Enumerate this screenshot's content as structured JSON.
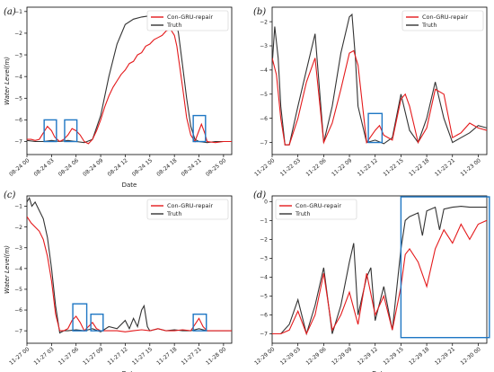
{
  "colors": {
    "prediction": "#e41a1c",
    "truth": "#333333",
    "highlight": "#1f77c4"
  },
  "chart_data": [
    {
      "type": "line",
      "panel_label": "(a)",
      "xlabel": "Date",
      "ylabel": "Water Level(m)",
      "xlim": [
        0,
        25
      ],
      "ylim": [
        -7.6,
        -0.8
      ],
      "xtick_values": [
        0,
        3,
        6,
        9,
        12,
        15,
        18,
        21,
        24
      ],
      "xtick_labels": [
        "08-24 00",
        "08-24 03",
        "08-24 06",
        "08-24 09",
        "08-24 12",
        "08-24 15",
        "08-24 18",
        "08-24 21",
        "08-25 00"
      ],
      "yticks": [
        -7,
        -6,
        -5,
        -4,
        -3,
        -2,
        -1
      ],
      "legend_position": "top-right",
      "series": [
        {
          "name": "Con-GRU-repair",
          "x": [
            0,
            0.5,
            1,
            1.5,
            2,
            2.5,
            3,
            3.4,
            4,
            4.5,
            5,
            5.5,
            6,
            6.5,
            7,
            7.5,
            8,
            8.5,
            9,
            9.5,
            10,
            10.5,
            11,
            11.5,
            12,
            12.5,
            13,
            13.5,
            14,
            14.5,
            15,
            15.5,
            16,
            16.5,
            17,
            17.5,
            18,
            18.3,
            18.6,
            19,
            19.5,
            20,
            20.5,
            21,
            21.3,
            21.7,
            22,
            23,
            24,
            25
          ],
          "y": [
            -6.9,
            -6.9,
            -6.95,
            -6.9,
            -6.6,
            -6.3,
            -6.5,
            -6.8,
            -7.0,
            -6.9,
            -6.7,
            -6.4,
            -6.5,
            -6.7,
            -7.0,
            -7.1,
            -6.9,
            -6.5,
            -6.0,
            -5.4,
            -4.9,
            -4.5,
            -4.2,
            -3.9,
            -3.7,
            -3.4,
            -3.3,
            -3.0,
            -2.9,
            -2.6,
            -2.5,
            -2.3,
            -2.2,
            -2.1,
            -1.9,
            -1.8,
            -2.1,
            -2.6,
            -3.4,
            -4.5,
            -5.9,
            -6.7,
            -7.0,
            -6.5,
            -6.2,
            -6.6,
            -7.0,
            -7.05,
            -7.0,
            -7.0
          ]
        },
        {
          "name": "Truth",
          "x": [
            0,
            1,
            2,
            3,
            4,
            5,
            6,
            7,
            8,
            9,
            10,
            11,
            12,
            13,
            14,
            15,
            16,
            17,
            18,
            18.5,
            19,
            19.5,
            20,
            20.5,
            21,
            22,
            23,
            24,
            25
          ],
          "y": [
            -6.95,
            -7.0,
            -7.0,
            -6.95,
            -7.0,
            -6.95,
            -7.0,
            -7.05,
            -6.9,
            -5.8,
            -4.0,
            -2.5,
            -1.6,
            -1.35,
            -1.25,
            -1.2,
            -1.15,
            -1.1,
            -1.05,
            -2.0,
            -3.5,
            -5.0,
            -6.3,
            -6.9,
            -7.0,
            -7.05,
            -7.0,
            -7.0,
            -7.0
          ]
        }
      ],
      "highlight_boxes": [
        {
          "x": [
            2.1,
            3.6
          ],
          "y": [
            -7.0,
            -6.0
          ]
        },
        {
          "x": [
            4.6,
            6.1
          ],
          "y": [
            -7.0,
            -6.0
          ]
        },
        {
          "x": [
            20.3,
            21.8
          ],
          "y": [
            -7.0,
            -5.8
          ]
        }
      ]
    },
    {
      "type": "line",
      "panel_label": "(b)",
      "xlabel": "",
      "ylabel": "",
      "xlim": [
        0,
        25
      ],
      "ylim": [
        -7.5,
        -1.4
      ],
      "xtick_values": [
        0,
        3,
        6,
        9,
        12,
        15,
        18,
        21,
        24
      ],
      "xtick_labels": [
        "11-22 00",
        "11-22 03",
        "11-22 06",
        "11-22 09",
        "11-22 12",
        "11-22 15",
        "11-22 18",
        "11-22 21",
        "11-23 00"
      ],
      "yticks": [
        -7,
        -6,
        -5,
        -4,
        -3,
        -2
      ],
      "legend_position": "top-right",
      "series": [
        {
          "name": "Con-GRU-repair",
          "x": [
            0,
            0.5,
            1,
            1.5,
            2,
            3,
            4,
            5,
            6,
            7,
            8,
            9,
            9.5,
            10,
            11,
            12,
            12.5,
            13,
            14,
            15,
            15.5,
            16,
            17,
            18,
            19,
            20,
            21,
            22,
            23,
            24,
            25
          ],
          "y": [
            -3.5,
            -4.2,
            -6.0,
            -7.1,
            -7.1,
            -6.0,
            -4.5,
            -3.5,
            -7.0,
            -6.2,
            -4.8,
            -3.3,
            -3.2,
            -3.8,
            -7.0,
            -6.5,
            -6.3,
            -6.7,
            -6.9,
            -5.2,
            -5.0,
            -5.5,
            -7.0,
            -6.4,
            -4.8,
            -5.0,
            -6.8,
            -6.6,
            -6.2,
            -6.4,
            -6.5
          ]
        },
        {
          "name": "Truth",
          "x": [
            0,
            0.3,
            0.7,
            1,
            1.5,
            2,
            3,
            4,
            5,
            6,
            7,
            8,
            9,
            9.3,
            9.7,
            10,
            11,
            12,
            13,
            14,
            15,
            16,
            17,
            18,
            19,
            20,
            21,
            22,
            23,
            24,
            25
          ],
          "y": [
            -3.8,
            -2.2,
            -3.5,
            -5.5,
            -7.1,
            -7.1,
            -5.5,
            -4.0,
            -2.5,
            -7.0,
            -5.5,
            -3.3,
            -1.8,
            -1.7,
            -3.5,
            -5.5,
            -7.0,
            -6.9,
            -7.05,
            -6.8,
            -5.0,
            -6.5,
            -7.0,
            -6.0,
            -4.5,
            -6.0,
            -7.0,
            -6.8,
            -6.6,
            -6.3,
            -6.4
          ]
        }
      ],
      "highlight_boxes": [
        {
          "x": [
            11.2,
            12.8
          ],
          "y": [
            -7.0,
            -5.8
          ]
        }
      ]
    },
    {
      "type": "line",
      "panel_label": "(c)",
      "xlabel": "Date",
      "ylabel": "Water Level(m)",
      "xlim": [
        0,
        25
      ],
      "ylim": [
        -7.6,
        -0.5
      ],
      "xtick_values": [
        0,
        3,
        6,
        9,
        12,
        15,
        18,
        21,
        24
      ],
      "xtick_labels": [
        "11-27 00",
        "11-27 03",
        "11-27 06",
        "11-27 09",
        "11-27 12",
        "11-27 15",
        "11-27 18",
        "11-27 21",
        "11-28 00"
      ],
      "yticks": [
        -7,
        -6,
        -5,
        -4,
        -3,
        -2,
        -1
      ],
      "legend_position": "top-right",
      "series": [
        {
          "name": "Con-GRU-repair",
          "x": [
            0,
            0.5,
            1,
            1.5,
            2,
            2.5,
            3,
            3.5,
            4,
            4.5,
            5,
            5.5,
            6,
            6.5,
            7,
            7.5,
            8,
            8.5,
            9,
            10,
            11,
            12,
            13,
            14,
            15,
            16,
            17,
            18,
            19,
            20,
            20.5,
            21,
            21.5,
            22,
            23,
            24,
            25
          ],
          "y": [
            -1.5,
            -1.8,
            -2.0,
            -2.2,
            -2.6,
            -3.4,
            -4.6,
            -6.2,
            -7.0,
            -7.0,
            -6.9,
            -6.5,
            -6.3,
            -6.6,
            -7.0,
            -6.8,
            -6.6,
            -6.9,
            -7.0,
            -7.0,
            -7.0,
            -7.05,
            -7.0,
            -6.95,
            -7.0,
            -6.9,
            -7.0,
            -7.0,
            -6.95,
            -7.0,
            -6.7,
            -6.4,
            -6.8,
            -7.0,
            -7.0,
            -7.0,
            -7.0
          ]
        },
        {
          "name": "Truth",
          "x": [
            0,
            0.3,
            0.6,
            1,
            1.5,
            2,
            2.5,
            3,
            3.5,
            4,
            4.5,
            5,
            6,
            7,
            8,
            9,
            10,
            11,
            12,
            12.5,
            13,
            13.5,
            14,
            14.3,
            14.7,
            15,
            16,
            17,
            18,
            19,
            20,
            21,
            22,
            23,
            24,
            25
          ],
          "y": [
            -0.8,
            -0.6,
            -1.0,
            -0.8,
            -1.2,
            -1.6,
            -2.5,
            -4.0,
            -5.8,
            -7.1,
            -7.0,
            -7.0,
            -6.95,
            -7.0,
            -6.9,
            -7.05,
            -6.8,
            -6.9,
            -6.5,
            -6.9,
            -6.4,
            -6.8,
            -6.0,
            -5.8,
            -6.8,
            -7.0,
            -6.9,
            -7.0,
            -6.95,
            -7.0,
            -7.0,
            -6.9,
            -7.0,
            -7.0,
            -7.0,
            -7.0
          ]
        }
      ],
      "highlight_boxes": [
        {
          "x": [
            5.6,
            7.3
          ],
          "y": [
            -7.0,
            -5.7
          ]
        },
        {
          "x": [
            7.8,
            9.3
          ],
          "y": [
            -7.0,
            -6.2
          ]
        },
        {
          "x": [
            20.3,
            21.9
          ],
          "y": [
            -7.0,
            -6.2
          ]
        }
      ]
    },
    {
      "type": "line",
      "panel_label": "(d)",
      "xlabel": "Date",
      "ylabel": "",
      "xlim": [
        0,
        25
      ],
      "ylim": [
        -7.5,
        0.3
      ],
      "xtick_values": [
        0,
        3,
        6,
        9,
        12,
        15,
        18,
        21,
        24
      ],
      "xtick_labels": [
        "12-29 00",
        "12-29 03",
        "12-29 06",
        "12-29 09",
        "12-29 12",
        "12-29 15",
        "12-29 18",
        "12-29 21",
        "12-30 00"
      ],
      "yticks": [
        -7,
        -6,
        -5,
        -4,
        -3,
        -2,
        -1,
        0
      ],
      "legend_position": "top-left",
      "series": [
        {
          "name": "Con-GRU-repair",
          "x": [
            0,
            1,
            2,
            3,
            4,
            5,
            6,
            7,
            8,
            9,
            10,
            11,
            12,
            13,
            14,
            15,
            15.5,
            16,
            17,
            18,
            19,
            20,
            21,
            22,
            23,
            24,
            25
          ],
          "y": [
            -7.0,
            -7.0,
            -6.8,
            -5.8,
            -7.0,
            -6.0,
            -3.8,
            -6.8,
            -6.0,
            -4.8,
            -6.5,
            -3.8,
            -6.0,
            -5.0,
            -6.8,
            -4.5,
            -2.8,
            -2.5,
            -3.2,
            -4.5,
            -2.5,
            -1.5,
            -2.2,
            -1.2,
            -2.0,
            -1.2,
            -1.0
          ]
        },
        {
          "name": "Truth",
          "x": [
            0,
            1,
            2,
            3,
            4,
            5,
            6,
            7,
            8,
            9,
            9.5,
            10,
            11,
            11.5,
            12,
            13,
            14,
            15,
            15.5,
            16,
            17,
            17.5,
            18,
            19,
            19.5,
            20,
            21,
            22,
            23,
            24,
            25
          ],
          "y": [
            -7.0,
            -7.0,
            -6.5,
            -5.2,
            -7.0,
            -5.5,
            -3.5,
            -7.0,
            -5.5,
            -3.2,
            -2.2,
            -6.0,
            -4.0,
            -3.5,
            -6.3,
            -4.5,
            -6.8,
            -2.5,
            -1.0,
            -0.8,
            -0.6,
            -1.8,
            -0.5,
            -0.3,
            -1.5,
            -0.4,
            -0.3,
            -0.25,
            -0.3,
            -0.3,
            -0.3
          ]
        }
      ],
      "highlight_boxes": [
        {
          "x": [
            15.0,
            25.3
          ],
          "y": [
            -7.2,
            0.25
          ]
        }
      ]
    }
  ]
}
